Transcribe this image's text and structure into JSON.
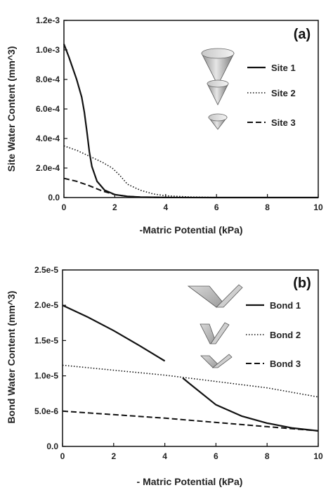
{
  "chart_data": [
    {
      "type": "line",
      "panel_label": "(a)",
      "xlabel": "-Matric Potential (kPa)",
      "ylabel": "Site Water Content (mm^3)",
      "xlim": [
        0,
        10
      ],
      "ylim": [
        0,
        0.0012
      ],
      "x_ticks": [
        0,
        2,
        4,
        6,
        8,
        10
      ],
      "x_tick_labels": [
        "0",
        "2",
        "4",
        "6",
        "8",
        "10"
      ],
      "y_ticks": [
        0,
        0.0002,
        0.0004,
        0.0006,
        0.0008,
        0.001,
        0.0012
      ],
      "y_tick_labels": [
        "0.0",
        "2.0e-4",
        "4.0e-4",
        "6.0e-4",
        "8.0e-4",
        "1.0e-3",
        "1.2e-3"
      ],
      "legend_position": "right",
      "series": [
        {
          "name": "Site 1",
          "line_style": "solid",
          "x": [
            0,
            0.2,
            0.5,
            0.7,
            0.8,
            0.9,
            1.0,
            1.1,
            1.3,
            1.6,
            2.0,
            2.5,
            3.0,
            4.0,
            6.0,
            10.0
          ],
          "y": [
            0.00104,
            0.00095,
            0.0008,
            0.00068,
            0.00058,
            0.00045,
            0.00031,
            0.00021,
            0.00011,
            5e-05,
            2e-05,
            8e-06,
            3e-06,
            5e-07,
            0.0,
            0.0
          ]
        },
        {
          "name": "Site 2",
          "line_style": "dotted",
          "x": [
            0,
            0.5,
            1.0,
            1.5,
            1.9,
            2.2,
            2.5,
            3.0,
            3.5,
            4.0,
            5.0,
            6.0,
            8.0,
            10.0
          ],
          "y": [
            0.00035,
            0.00032,
            0.00028,
            0.00024,
            0.0002,
            0.00015,
            9e-05,
            5e-05,
            2.5e-05,
            1.2e-05,
            4e-06,
            1e-06,
            0.0,
            0.0
          ]
        },
        {
          "name": "Site 3",
          "line_style": "dashed",
          "x": [
            0,
            0.5,
            1.0,
            1.5,
            2.0,
            2.5,
            3.0,
            4.0,
            6.0,
            10.0
          ],
          "y": [
            0.00013,
            0.00011,
            8e-05,
            4.5e-05,
            2e-05,
            8e-06,
            3e-06,
            0.0,
            0.0,
            0.0
          ]
        }
      ]
    },
    {
      "type": "line",
      "panel_label": "(b)",
      "xlabel": "- Matric Potential (kPa)",
      "ylabel": "Bond Water Content (mm^3)",
      "xlim": [
        0,
        10
      ],
      "ylim": [
        0,
        2.5e-05
      ],
      "x_ticks": [
        0,
        2,
        4,
        6,
        8,
        10
      ],
      "x_tick_labels": [
        "0",
        "2",
        "4",
        "6",
        "8",
        "10"
      ],
      "y_ticks": [
        0,
        5e-06,
        1e-05,
        1.5e-05,
        2e-05,
        2.5e-05
      ],
      "y_tick_labels": [
        "0.0",
        "5.0e-6",
        "1.0e-5",
        "1.5e-5",
        "2.0e-5",
        "2.5e-5"
      ],
      "legend_position": "right",
      "series": [
        {
          "name": "Bond 1",
          "line_style": "solid",
          "x": [
            0,
            1,
            2,
            3,
            4,
            4.7,
            5,
            6,
            7,
            8,
            9,
            10
          ],
          "y": [
            2e-05,
            1.83e-05,
            1.64e-05,
            1.43e-05,
            1.21e-05,
            9.7e-06,
            8.8e-06,
            5.9e-06,
            4.3e-06,
            3.3e-06,
            2.6e-06,
            2.2e-06
          ],
          "gap_before_index": 5
        },
        {
          "name": "Bond 2",
          "line_style": "dotted",
          "x": [
            0,
            2,
            4,
            6,
            8,
            10
          ],
          "y": [
            1.15e-05,
            1.08e-05,
            1.01e-05,
            9.2e-06,
            8.3e-06,
            7e-06
          ]
        },
        {
          "name": "Bond 3",
          "line_style": "dashed",
          "x": [
            0,
            2,
            4,
            6,
            8,
            10
          ],
          "y": [
            5e-06,
            4.5e-06,
            4e-06,
            3.4e-06,
            2.8e-06,
            2.2e-06
          ]
        }
      ]
    }
  ]
}
